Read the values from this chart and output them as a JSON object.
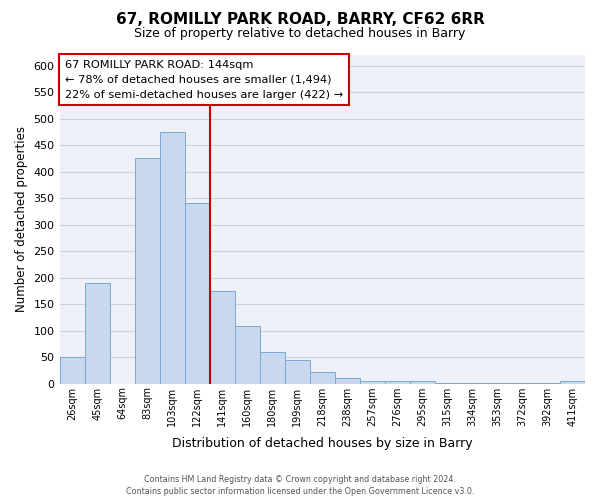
{
  "title": "67, ROMILLY PARK ROAD, BARRY, CF62 6RR",
  "subtitle": "Size of property relative to detached houses in Barry",
  "xlabel": "Distribution of detached houses by size in Barry",
  "ylabel": "Number of detached properties",
  "bar_labels": [
    "26sqm",
    "45sqm",
    "64sqm",
    "83sqm",
    "103sqm",
    "122sqm",
    "141sqm",
    "160sqm",
    "180sqm",
    "199sqm",
    "218sqm",
    "238sqm",
    "257sqm",
    "276sqm",
    "295sqm",
    "315sqm",
    "334sqm",
    "353sqm",
    "372sqm",
    "392sqm",
    "411sqm"
  ],
  "bar_values": [
    50,
    190,
    0,
    425,
    475,
    340,
    175,
    108,
    60,
    45,
    22,
    10,
    5,
    5,
    4,
    2,
    2,
    2,
    2,
    2,
    5
  ],
  "bar_color": "#c8d8ee",
  "bar_edge_color": "#7aaad0",
  "vline_x_index": 6,
  "vline_color": "#cc0000",
  "ylim": [
    0,
    620
  ],
  "yticks": [
    0,
    50,
    100,
    150,
    200,
    250,
    300,
    350,
    400,
    450,
    500,
    550,
    600
  ],
  "annotation_title": "67 ROMILLY PARK ROAD: 144sqm",
  "annotation_line1": "← 78% of detached houses are smaller (1,494)",
  "annotation_line2": "22% of semi-detached houses are larger (422) →",
  "annotation_box_facecolor": "#ffffff",
  "annotation_box_edgecolor": "#cc0000",
  "footer1": "Contains HM Land Registry data © Crown copyright and database right 2024.",
  "footer2": "Contains public sector information licensed under the Open Government Licence v3.0.",
  "fig_facecolor": "#ffffff",
  "axes_facecolor": "#eef2f8",
  "grid_color": "#c8d2e0"
}
